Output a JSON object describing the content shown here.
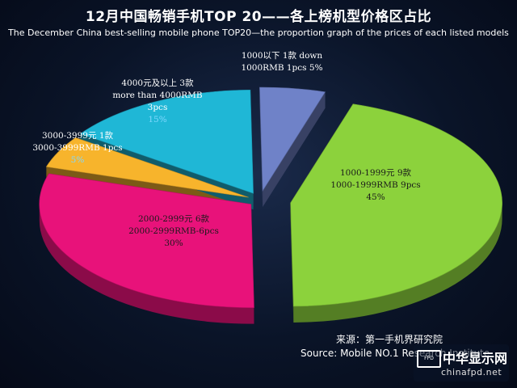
{
  "title": "12月中国畅销手机TOP 20——各上榜机型价格区占比",
  "subtitle": "The  December China best-selling mobile phone TOP20—the proportion graph of the prices of each listed models",
  "chart_data": {
    "type": "pie",
    "slices": [
      {
        "zh": "1000-1999元 9款",
        "en": "1000-1999RMB 9pcs",
        "pct_label": "45%",
        "value": 45,
        "color": "#8cd23c"
      },
      {
        "zh": "2000-2999元 6款",
        "en": "2000-2999RMB-6pcs",
        "pct_label": "30%",
        "value": 30,
        "color": "#e8127a"
      },
      {
        "zh": "3000-3999元 1款",
        "en": "3000-3999RMB 1pcs",
        "pct_label": "5%",
        "value": 5,
        "color": "#f7b42c"
      },
      {
        "zh": "4000元及以上 3款",
        "en": "more than 4000RMB",
        "en2": "3pcs",
        "pct_label": "15%",
        "value": 15,
        "color": "#1fb7d6"
      },
      {
        "zh": "1000以下 1款 down",
        "en": "1000RMB 1pcs",
        "pct_label": "5%",
        "value": 5,
        "color": "#6f82c8"
      }
    ]
  },
  "source": {
    "line1": "来源：第一手机界研究院",
    "line2": "Source: Mobile NO.1 Research Institute"
  },
  "watermark": {
    "name": "中华显示网",
    "url": "chinafpd.net",
    "logo": "FPD"
  }
}
